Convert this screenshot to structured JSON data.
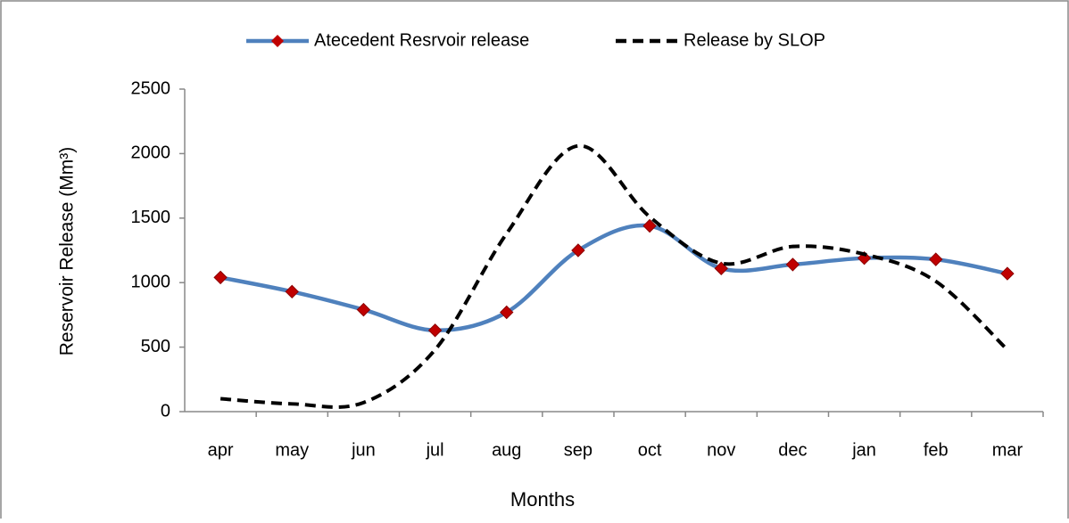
{
  "chart_data": {
    "type": "line",
    "categories": [
      "apr",
      "may",
      "jun",
      "jul",
      "aug",
      "sep",
      "oct",
      "nov",
      "dec",
      "jan",
      "feb",
      "mar"
    ],
    "series": [
      {
        "name": "Atecedent Resrvoir release",
        "color": "#4f81bd",
        "marker_color": "#c00000",
        "dashed": false,
        "smooth": true,
        "values": [
          1040,
          930,
          790,
          630,
          770,
          1250,
          1440,
          1110,
          1140,
          1190,
          1180,
          1070
        ]
      },
      {
        "name": "Release by SLOP",
        "color": "#000000",
        "dashed": true,
        "smooth": true,
        "values": [
          100,
          60,
          70,
          480,
          1380,
          2060,
          1510,
          1150,
          1280,
          1220,
          1010,
          480
        ]
      }
    ],
    "x_label": "Months",
    "y_label": "Reservoir Release (Mm³)",
    "ylim": [
      0,
      2500
    ],
    "yticks": [
      0,
      500,
      1000,
      1500,
      2000,
      2500
    ],
    "grid": false,
    "legend": "top"
  }
}
